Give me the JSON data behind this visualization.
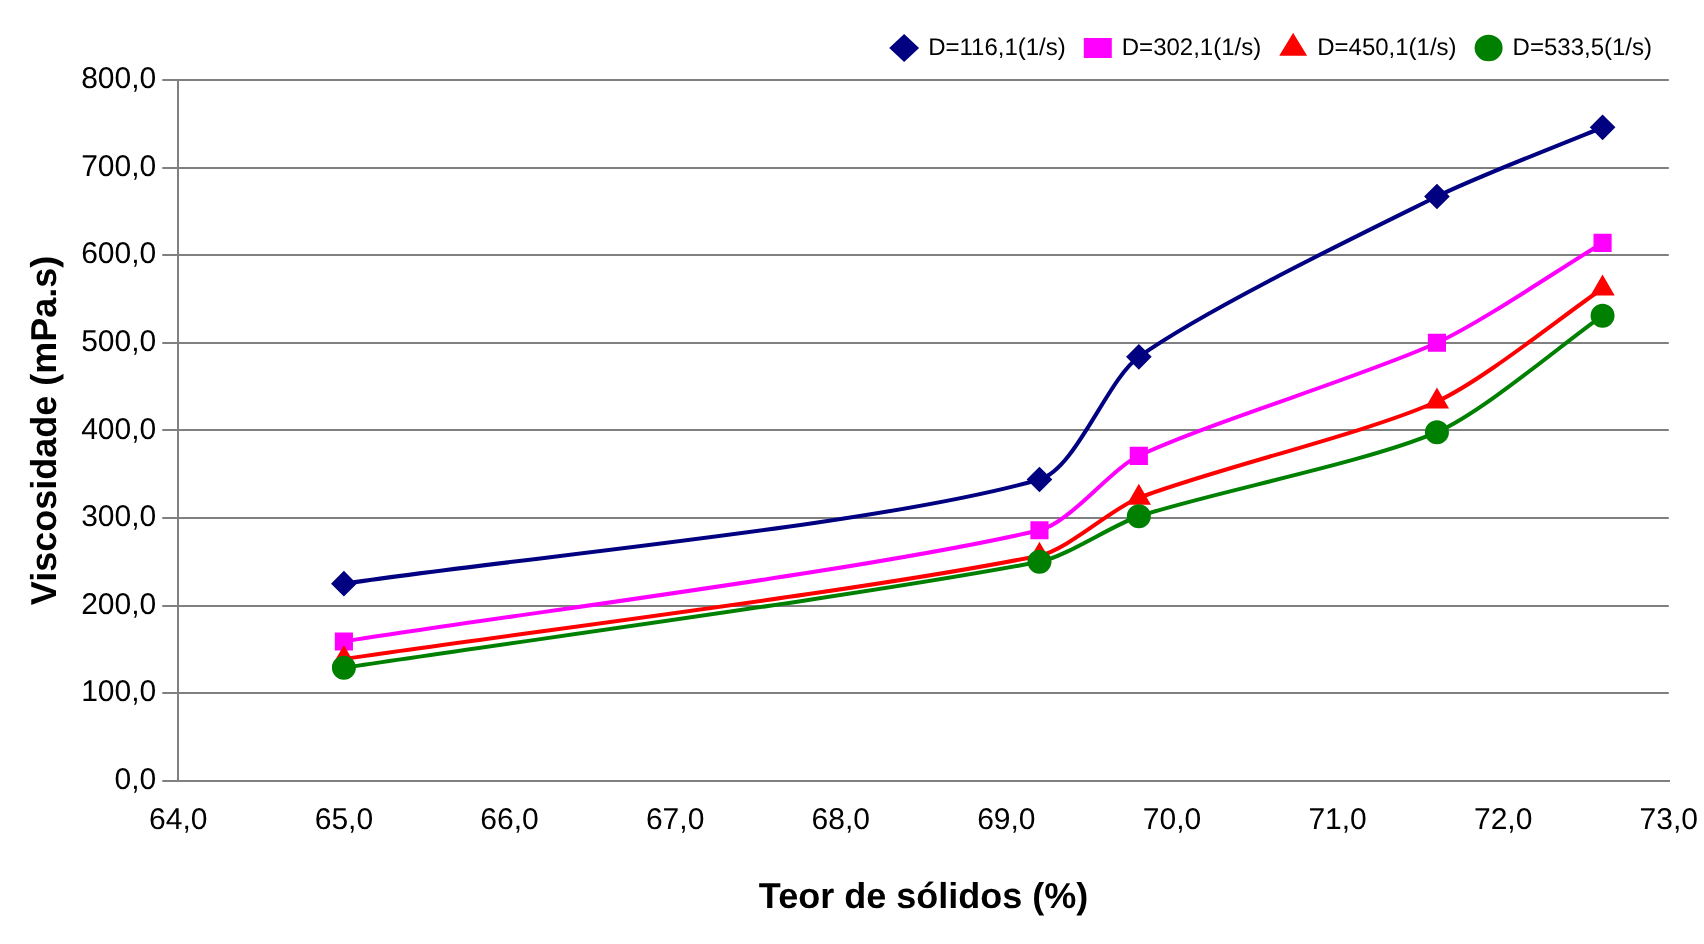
{
  "chart_data": {
    "type": "line",
    "xlabel": "Teor de sólidos (%)",
    "ylabel": "Viscosidade (mPa.s)",
    "x": [
      65.0,
      69.2,
      69.8,
      71.6,
      72.6
    ],
    "series": [
      {
        "name": "D=116,1(1/s)",
        "color": "#000080",
        "marker": "diamond",
        "values": [
          225,
          344,
          484,
          667,
          746
        ]
      },
      {
        "name": "D=302,1(1/s)",
        "color": "#ff00ff",
        "marker": "square",
        "values": [
          159,
          286,
          371,
          500,
          614
        ]
      },
      {
        "name": "D=450,1(1/s)",
        "color": "#ff0000",
        "marker": "triangle",
        "values": [
          139,
          257,
          323,
          433,
          562
        ]
      },
      {
        "name": "D=533,5(1/s)",
        "color": "#008000",
        "marker": "circle",
        "values": [
          129,
          250,
          302,
          398,
          531
        ]
      }
    ],
    "xlim": [
      64,
      73
    ],
    "xticks": [
      {
        "value": 64,
        "label": "64,0"
      },
      {
        "value": 65,
        "label": "65,0"
      },
      {
        "value": 66,
        "label": "66,0"
      },
      {
        "value": 67,
        "label": "67,0"
      },
      {
        "value": 68,
        "label": "68,0"
      },
      {
        "value": 69,
        "label": "69,0"
      },
      {
        "value": 70,
        "label": "70,0"
      },
      {
        "value": 71,
        "label": "71,0"
      },
      {
        "value": 72,
        "label": "72,0"
      },
      {
        "value": 73,
        "label": "73,0"
      }
    ],
    "ylim": [
      0,
      800
    ],
    "yticks": [
      {
        "value": 0,
        "label": "0,0"
      },
      {
        "value": 100,
        "label": "100,0"
      },
      {
        "value": 200,
        "label": "200,0"
      },
      {
        "value": 300,
        "label": "300,0"
      },
      {
        "value": 400,
        "label": "400,0"
      },
      {
        "value": 500,
        "label": "500,0"
      },
      {
        "value": 600,
        "label": "600,0"
      },
      {
        "value": 700,
        "label": "700,0"
      },
      {
        "value": 800,
        "label": "800,0"
      }
    ],
    "grid": "y",
    "legend": "top right",
    "line_style": "solid"
  }
}
